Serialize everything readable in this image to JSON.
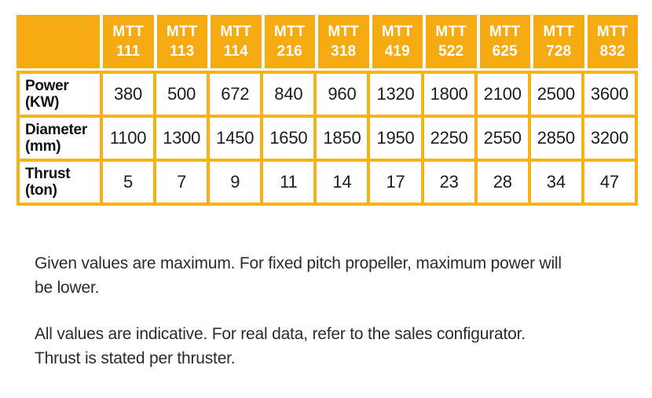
{
  "table": {
    "corner_label": "",
    "column_prefix": "MTT",
    "columns": [
      "111",
      "113",
      "114",
      "216",
      "318",
      "419",
      "522",
      "625",
      "728",
      "832"
    ],
    "rows": [
      {
        "label": "Power",
        "unit": "(KW)",
        "values": [
          "380",
          "500",
          "672",
          "840",
          "960",
          "1320",
          "1800",
          "2100",
          "2500",
          "3600"
        ]
      },
      {
        "label": "Diameter",
        "unit": "(mm)",
        "values": [
          "1100",
          "1300",
          "1450",
          "1650",
          "1850",
          "1950",
          "2250",
          "2550",
          "2850",
          "3200"
        ]
      },
      {
        "label": "Thrust",
        "unit": "(ton)",
        "values": [
          "5",
          "7",
          "9",
          "11",
          "14",
          "17",
          "23",
          "28",
          "34",
          "47"
        ]
      }
    ]
  },
  "notes": [
    {
      "lines": [
        "Given values are maximum. For fixed pitch propeller, maximum power will",
        "be lower."
      ]
    },
    {
      "lines": [
        "All values are indicative. For real data, refer to the sales configurator.",
        "Thrust is stated per thruster."
      ]
    }
  ],
  "colors": {
    "header_bg": "#F5AB11",
    "border": "#F9B214",
    "header_text": "#FFFFFF",
    "body_text": "#1C1C1C"
  }
}
